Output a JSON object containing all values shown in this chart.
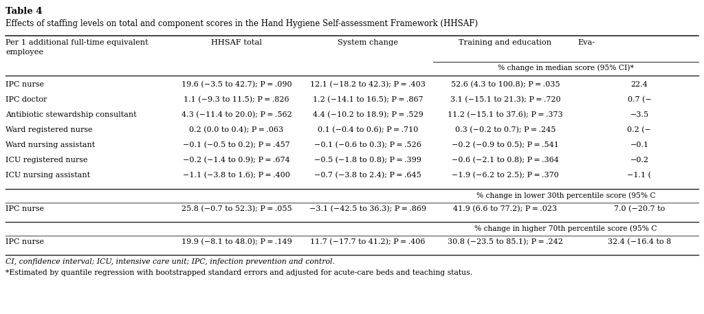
{
  "title": "Table 4",
  "subtitle": "Effects of staffing levels on total and component scores in the Hand Hygiene Self-assessment Framework (HHSAF)",
  "main_rows": [
    [
      "IPC nurse",
      "19.6 (−3.5 to 42.7); P = .090",
      "12.1 (−18.2 to 42.3); P = .403",
      "52.6 (4.3 to 100.8); P = .035",
      "22.4"
    ],
    [
      "IPC doctor",
      "1.1 (−9.3 to 11.5); P = .826",
      "1.2 (−14.1 to 16.5); P = .867",
      "3.1 (−15.1 to 21.3); P = .720",
      "0.7 (−"
    ],
    [
      "Antibiotic stewardship consultant",
      "4.3 (−11.4 to 20.0); P = .562",
      "4.4 (−10.2 to 18.9); P = .529",
      "11.2 (−15.1 to 37.6); P = .373",
      "−3.5"
    ],
    [
      "Ward registered nurse",
      "0.2 (0.0 to 0.4); P = .063",
      "0.1 (−0.4 to 0.6); P = .710",
      "0.3 (−0.2 to 0.7); P = .245",
      "0.2 (−"
    ],
    [
      "Ward nursing assistant",
      "−0.1 (−0.5 to 0.2); P = .457",
      "−0.1 (−0.6 to 0.3); P = .526",
      "−0.2 (−0.9 to 0.5); P = .541",
      "−0.1"
    ],
    [
      "ICU registered nurse",
      "−0.2 (−1.4 to 0.9); P = .674",
      "−0.5 (−1.8 to 0.8); P = .399",
      "−0.6 (−2.1 to 0.8); P = .364",
      "−0.2"
    ],
    [
      "ICU nursing assistant",
      "−1.1 (−3.8 to 1.6); P = .400",
      "−0.7 (−3.8 to 2.4); P = .645",
      "−1.9 (−6.2 to 2.5); P = .370",
      "−1.1 ("
    ]
  ],
  "percentile_30_header": "% change in lower 30th percentile score (95% C",
  "percentile_30_row": [
    "IPC nurse",
    "25.8 (−0.7 to 52.3); P = .055",
    "−3.1 (−42.5 to 36.3); P = .869",
    "41.9 (6.6 to 77.2); P = .023",
    "7.0 (−20.7 to"
  ],
  "percentile_70_header": "% change in higher 70th percentile score (95% C",
  "percentile_70_row": [
    "IPC nurse",
    "19.9 (−8.1 to 48.0); P = .149",
    "11.7 (−17.7 to 41.2); P = .406",
    "30.8 (−23.5 to 85.1); P = .242",
    "32.4 (−16.4 to 8"
  ],
  "footnote1": "CI, confidence interval; ICU, intensive care unit; IPC, infection prevention and control.",
  "footnote2": "*Estimated by quantile regression with bootstrapped standard errors and adjusted for acute-care beds and teaching status.",
  "bg_color": "#ffffff",
  "text_color": "#000000"
}
